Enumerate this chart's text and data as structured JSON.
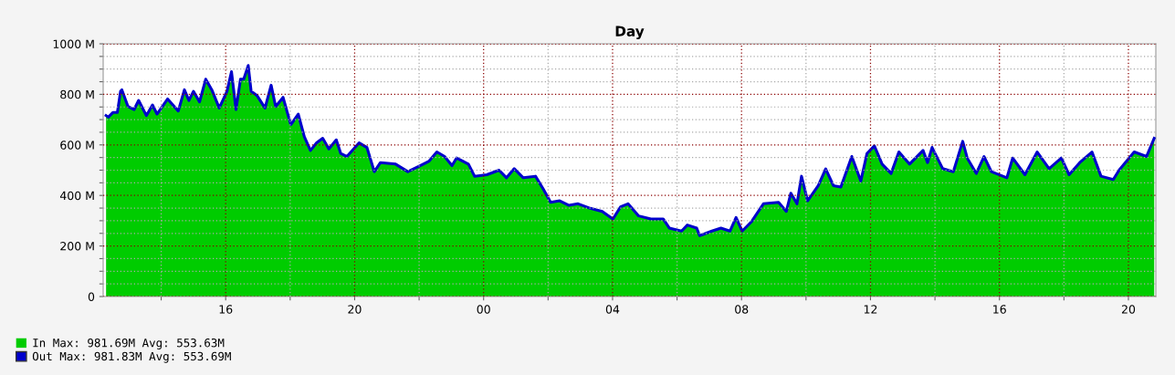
{
  "chart_data": {
    "type": "area",
    "title": "Day",
    "x": [
      12.29,
      12.36,
      12.5,
      12.64,
      12.74,
      12.78,
      12.97,
      13.16,
      13.3,
      13.54,
      13.73,
      13.87,
      14.2,
      14.53,
      14.72,
      14.86,
      15.0,
      15.19,
      15.38,
      15.57,
      15.8,
      16.04,
      16.18,
      16.32,
      16.46,
      16.56,
      16.7,
      16.79,
      16.98,
      17.22,
      17.41,
      17.55,
      17.78,
      18.02,
      18.25,
      18.44,
      18.63,
      18.82,
      19.01,
      19.2,
      19.43,
      19.57,
      19.76,
      20.14,
      20.38,
      20.61,
      20.8,
      21.27,
      21.65,
      22.03,
      22.31,
      22.55,
      22.79,
      23.02,
      23.16,
      23.53,
      23.72,
      24.1,
      24.48,
      24.71,
      24.95,
      25.23,
      25.61,
      25.84,
      26.08,
      26.36,
      26.65,
      26.93,
      27.31,
      27.68,
      28.01,
      28.25,
      28.48,
      28.81,
      29.19,
      29.57,
      29.76,
      30.14,
      30.32,
      30.61,
      30.7,
      31.08,
      31.36,
      31.64,
      31.83,
      32.02,
      32.3,
      32.68,
      33.15,
      33.39,
      33.53,
      33.72,
      33.86,
      34.05,
      34.38,
      34.61,
      34.85,
      35.08,
      35.42,
      35.7,
      35.89,
      36.12,
      36.36,
      36.64,
      36.88,
      37.21,
      37.63,
      37.77,
      37.91,
      38.24,
      38.57,
      38.86,
      39.0,
      39.28,
      39.52,
      39.75,
      40.23,
      40.41,
      40.79,
      41.17,
      41.54,
      41.92,
      42.16,
      42.49,
      42.87,
      43.15,
      43.53,
      43.71,
      44.18,
      44.56,
      44.8
    ],
    "series": [
      {
        "name": "In Max: 981.69M Avg: 553.63M",
        "color": "#00cc00",
        "values": [
          716,
          710,
          728,
          728,
          812,
          818,
          752,
          740,
          776,
          716,
          758,
          722,
          782,
          734,
          818,
          776,
          812,
          770,
          860,
          818,
          746,
          812,
          890,
          740,
          860,
          860,
          914,
          812,
          794,
          746,
          836,
          752,
          788,
          680,
          722,
          632,
          578,
          608,
          626,
          584,
          620,
          566,
          554,
          608,
          590,
          494,
          530,
          524,
          494,
          518,
          536,
          572,
          554,
          518,
          548,
          524,
          476,
          482,
          500,
          470,
          506,
          470,
          476,
          428,
          373,
          379,
          361,
          367,
          349,
          337,
          307,
          355,
          367,
          319,
          307,
          307,
          271,
          259,
          283,
          271,
          241,
          259,
          271,
          259,
          313,
          259,
          295,
          367,
          373,
          337,
          409,
          367,
          476,
          379,
          439,
          505,
          439,
          433,
          554,
          457,
          566,
          596,
          524,
          487,
          572,
          524,
          578,
          530,
          590,
          506,
          494,
          614,
          548,
          487,
          554,
          494,
          470,
          548,
          482,
          572,
          506,
          548,
          482,
          530,
          572,
          476,
          463,
          500,
          572,
          554,
          626
        ]
      },
      {
        "name": "Out Max: 981.83M Avg: 553.69M",
        "type": "line",
        "color": "#0000cc",
        "values": [
          716,
          710,
          728,
          728,
          812,
          818,
          752,
          740,
          776,
          716,
          758,
          722,
          782,
          734,
          818,
          776,
          812,
          770,
          860,
          818,
          746,
          812,
          890,
          740,
          860,
          860,
          914,
          812,
          794,
          746,
          836,
          752,
          788,
          680,
          722,
          632,
          578,
          608,
          626,
          584,
          620,
          566,
          554,
          608,
          590,
          494,
          530,
          524,
          494,
          518,
          536,
          572,
          554,
          518,
          548,
          524,
          476,
          482,
          500,
          470,
          506,
          470,
          476,
          428,
          373,
          379,
          361,
          367,
          349,
          337,
          307,
          355,
          367,
          319,
          307,
          307,
          271,
          259,
          283,
          271,
          241,
          259,
          271,
          259,
          313,
          259,
          295,
          367,
          373,
          337,
          409,
          367,
          476,
          379,
          439,
          505,
          439,
          433,
          554,
          457,
          566,
          596,
          524,
          487,
          572,
          524,
          578,
          530,
          590,
          506,
          494,
          614,
          548,
          487,
          554,
          494,
          470,
          548,
          482,
          572,
          506,
          548,
          482,
          530,
          572,
          476,
          463,
          500,
          572,
          554,
          626
        ]
      }
    ],
    "xlim": [
      12.2,
      44.85
    ],
    "xticks": [
      {
        "value": 14,
        "label": null
      },
      {
        "value": 16,
        "label": "16"
      },
      {
        "value": 18,
        "label": null
      },
      {
        "value": 20,
        "label": "20"
      },
      {
        "value": 22,
        "label": null
      },
      {
        "value": 24,
        "label": "00"
      },
      {
        "value": 26,
        "label": null
      },
      {
        "value": 28,
        "label": "04"
      },
      {
        "value": 30,
        "label": null
      },
      {
        "value": 32,
        "label": "08"
      },
      {
        "value": 34,
        "label": null
      },
      {
        "value": 36,
        "label": "12"
      },
      {
        "value": 38,
        "label": null
      },
      {
        "value": 40,
        "label": "16"
      },
      {
        "value": 42,
        "label": null
      },
      {
        "value": 44,
        "label": "20"
      }
    ],
    "ylim": [
      0,
      1000
    ],
    "yticks": [
      0,
      {
        "value": 50,
        "label": null
      },
      {
        "value": 100,
        "label": null
      },
      {
        "value": 150,
        "label": null
      },
      {
        "value": 200,
        "label": "200 M"
      },
      {
        "value": 250,
        "label": null
      },
      {
        "value": 300,
        "label": null
      },
      {
        "value": 350,
        "label": null
      },
      {
        "value": 400,
        "label": "400 M"
      },
      {
        "value": 450,
        "label": null
      },
      {
        "value": 500,
        "label": null
      },
      {
        "value": 550,
        "label": null
      },
      {
        "value": 600,
        "label": "600 M"
      },
      {
        "value": 650,
        "label": null
      },
      {
        "value": 700,
        "label": null
      },
      {
        "value": 750,
        "label": null
      },
      {
        "value": 800,
        "label": "800 M"
      },
      {
        "value": 850,
        "label": null
      },
      {
        "value": 900,
        "label": null
      },
      {
        "value": 950,
        "label": null
      },
      {
        "value": 1000,
        "label": "1000 M"
      }
    ],
    "grid": true,
    "legend": "bottom left"
  }
}
